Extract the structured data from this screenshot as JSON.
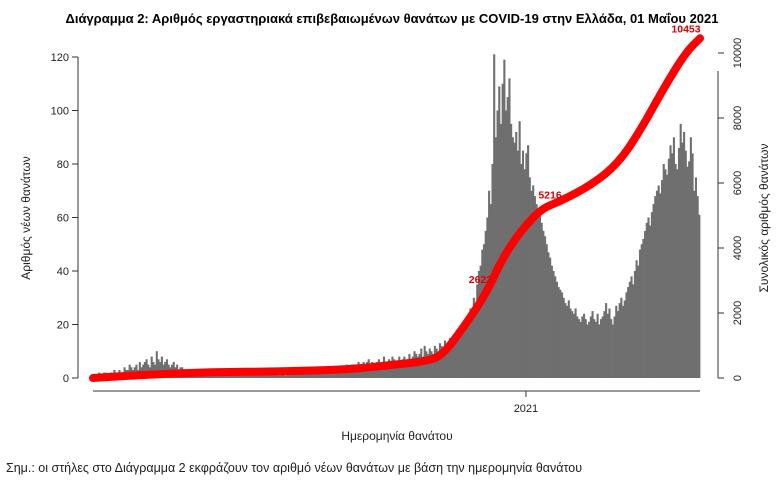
{
  "chart_data": {
    "type": "bar",
    "title": "Διάγραμμα 2: Αριθμός εργαστηριακά επιβεβαιωμένων θανάτων με COVID-19 στην Ελλάδα, 01 Μαΐου 2021",
    "xlabel": "Ημερομηνία θανάτου",
    "ylabel": "Αριθμός νέων θανάτων",
    "ylabel_right": "Συνολικός αριθμός θανάτων",
    "x_ticks": [
      "2021"
    ],
    "y_ticks": [
      "0",
      "20",
      "40",
      "60",
      "80",
      "100",
      "120"
    ],
    "y2_ticks": [
      "0",
      "2000",
      "4000",
      "6000",
      "8000",
      "10000"
    ],
    "ylim": [
      0,
      125
    ],
    "y2lim": [
      0,
      10650
    ],
    "grid": false,
    "series": [
      {
        "type": "bar",
        "color": "#6f6f6f",
        "start_date": "2020-03-11",
        "values": [
          1,
          1,
          1,
          2,
          1,
          1,
          2,
          2,
          1,
          1,
          2,
          1,
          3,
          2,
          2,
          3,
          2,
          2,
          4,
          3,
          3,
          5,
          4,
          3,
          4,
          5,
          3,
          6,
          4,
          5,
          6,
          7,
          5,
          4,
          8,
          6,
          5,
          10,
          7,
          6,
          8,
          5,
          6,
          7,
          5,
          4,
          5,
          6,
          4,
          5,
          3,
          4,
          4,
          3,
          3,
          3,
          2,
          3,
          2,
          2,
          3,
          2,
          2,
          2,
          2,
          3,
          2,
          2,
          2,
          2,
          2,
          1,
          2,
          2,
          2,
          2,
          1,
          1,
          2,
          1,
          1,
          2,
          1,
          1,
          1,
          2,
          1,
          1,
          1,
          2,
          1,
          1,
          2,
          1,
          1,
          1,
          2,
          1,
          1,
          2,
          1,
          2,
          1,
          1,
          2,
          2,
          1,
          2,
          2,
          1,
          2,
          2,
          2,
          1,
          2,
          2,
          2,
          2,
          3,
          2,
          2,
          3,
          2,
          3,
          2,
          3,
          3,
          2,
          3,
          3,
          2,
          3,
          2,
          3,
          3,
          3,
          3,
          4,
          3,
          3,
          4,
          3,
          3,
          4,
          4,
          3,
          4,
          4,
          4,
          5,
          4,
          4,
          5,
          5,
          4,
          5,
          6,
          5,
          5,
          6,
          5,
          6,
          7,
          5,
          6,
          5,
          4,
          6,
          7,
          5,
          6,
          8,
          5,
          6,
          7,
          6,
          8,
          7,
          6,
          6,
          8,
          5,
          7,
          8,
          6,
          7,
          9,
          6,
          8,
          10,
          9,
          8,
          9,
          11,
          8,
          12,
          10,
          9,
          11,
          10,
          9,
          12,
          11,
          10,
          13,
          12,
          11,
          14,
          12,
          13,
          15,
          14,
          13,
          16,
          18,
          15,
          17,
          20,
          19,
          22,
          21,
          24,
          26,
          25,
          30,
          28,
          35,
          40,
          42,
          48,
          50,
          55,
          60,
          70,
          65,
          80,
          121,
          90,
          100,
          109,
          95,
          110,
          119,
          100,
          105,
          112,
          95,
          90,
          88,
          92,
          85,
          96,
          80,
          85,
          78,
          84,
          87,
          75,
          70,
          72,
          68,
          65,
          60,
          62,
          58,
          55,
          53,
          50,
          47,
          45,
          42,
          40,
          38,
          36,
          34,
          33,
          32,
          30,
          28,
          27,
          29,
          26,
          25,
          24,
          26,
          23,
          22,
          21,
          23,
          24,
          22,
          20,
          21,
          23,
          25,
          22,
          21,
          24,
          20,
          22,
          23,
          25,
          28,
          24,
          26,
          22,
          20,
          23,
          27,
          25,
          28,
          30,
          27,
          29,
          32,
          34,
          36,
          38,
          35,
          40,
          44,
          42,
          48,
          50,
          52,
          55,
          58,
          60,
          57,
          62,
          65,
          68,
          70,
          72,
          69,
          74,
          80,
          78,
          76,
          82,
          87,
          84,
          90,
          80,
          78,
          86,
          95,
          88,
          92,
          85,
          79,
          81,
          90,
          84,
          70,
          75,
          68,
          61
        ]
      },
      {
        "type": "line",
        "color": "#ff0000",
        "name": "",
        "points": [
          [
            "2020-03-11",
            0
          ],
          [
            "2020-04-15",
            100
          ],
          [
            "2020-06-01",
            180
          ],
          [
            "2020-07-15",
            200
          ],
          [
            "2020-09-01",
            260
          ],
          [
            "2020-10-01",
            400
          ],
          [
            "2020-10-25",
            520
          ],
          [
            "2020-11-05",
            700
          ],
          [
            "2020-11-20",
            1600
          ],
          [
            "2020-12-05",
            2622
          ],
          [
            "2020-12-15",
            3600
          ],
          [
            "2020-12-25",
            4300
          ],
          [
            "2021-01-02",
            4750
          ],
          [
            "2021-01-12",
            5216
          ],
          [
            "2021-01-25",
            5450
          ],
          [
            "2021-02-15",
            5950
          ],
          [
            "2021-03-05",
            6600
          ],
          [
            "2021-03-20",
            7600
          ],
          [
            "2021-04-05",
            8900
          ],
          [
            "2021-04-20",
            10000
          ],
          [
            "2021-04-30",
            10453
          ]
        ],
        "labels": [
          {
            "date": "2020-12-05",
            "value": "2622"
          },
          {
            "date": "2021-01-12",
            "value": "5216"
          },
          {
            "date": "2021-04-30",
            "value": "10453"
          }
        ]
      }
    ]
  },
  "footnote": "Σημ.: οι στήλες στο Διάγραμμα 2 εκφράζουν τον αριθμό νέων θανάτων με βάση την ημερομηνία θανάτου"
}
